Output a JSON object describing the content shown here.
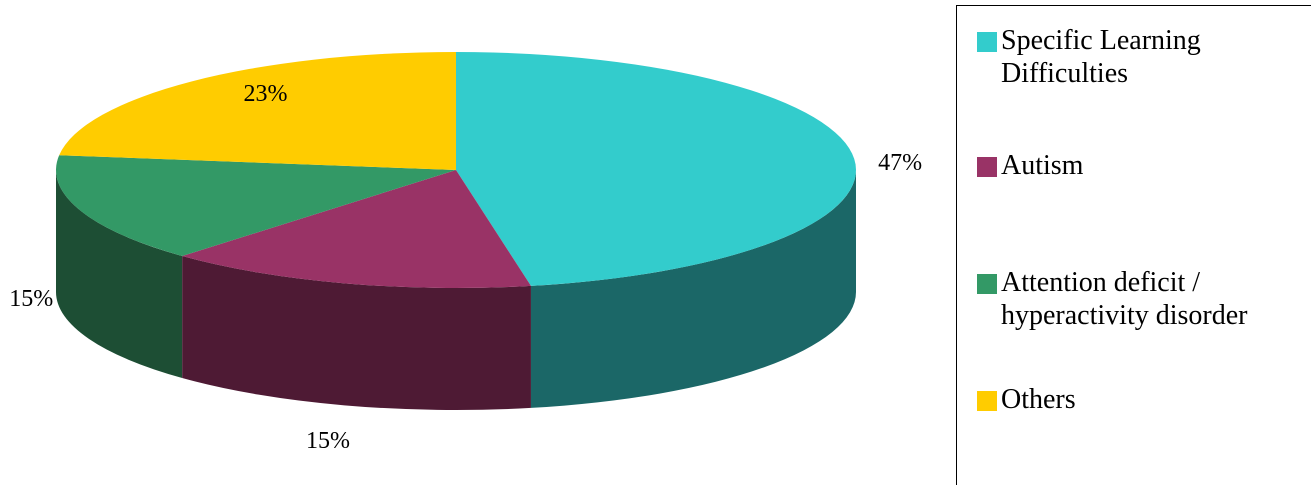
{
  "chart_data": {
    "type": "pie",
    "style": "3d",
    "categories": [
      "Specific Learning Difficulties",
      "Autism",
      "Attention  deficit / hyperactivity disorder",
      "Others"
    ],
    "values": [
      47,
      15,
      15,
      23
    ],
    "data_labels": [
      "47%",
      "15%",
      "15%",
      "23%"
    ],
    "colors": [
      "#33CCCC",
      "#993366",
      "#339966",
      "#FFCC00"
    ],
    "side_colors": [
      "#1B6767",
      "#4E1A34",
      "#1D4E34",
      "#7F6600"
    ],
    "legend_position": "right"
  },
  "legend": {
    "items": [
      {
        "label": "Specific Learning\nDifficulties",
        "color": "#33CCCC"
      },
      {
        "label": "Autism",
        "color": "#993366"
      },
      {
        "label": "Attention  deficit /\nhyperactivity disorder",
        "color": "#339966"
      },
      {
        "label": "Others",
        "color": "#FFCC00"
      }
    ]
  }
}
